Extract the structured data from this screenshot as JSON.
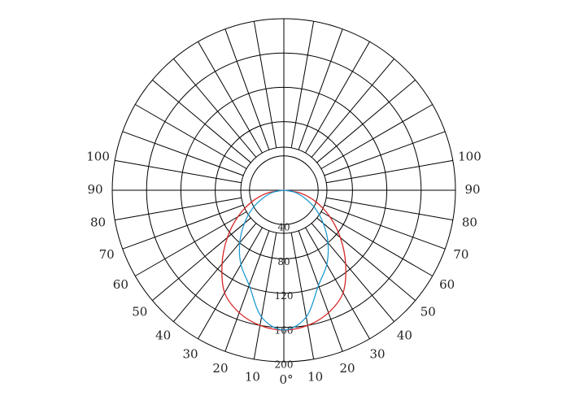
{
  "chart_data": {
    "type": "polar",
    "x": [
      -90,
      -80,
      -70,
      -60,
      -50,
      -40,
      -30,
      -20,
      -10,
      0,
      10,
      20,
      30,
      40,
      50,
      60,
      70,
      80,
      90
    ],
    "series": [
      {
        "color": "#d62728",
        "values": [
          0,
          20,
          40,
          62,
          86,
          112,
          138,
          152,
          160,
          163,
          160,
          152,
          138,
          112,
          86,
          62,
          40,
          20,
          0
        ]
      },
      {
        "color": "#1f9bd1",
        "values": [
          0,
          12,
          25,
          42,
          60,
          80,
          100,
          118,
          150,
          163,
          150,
          118,
          100,
          80,
          60,
          42,
          25,
          12,
          0
        ]
      }
    ],
    "rlim": [
      0,
      200
    ],
    "rticks": [
      40,
      80,
      120,
      160,
      200
    ],
    "thetaticks": [
      {
        "value": 0,
        "label": "0°"
      },
      10,
      20,
      30,
      40,
      50,
      60,
      70,
      80,
      90,
      100
    ]
  }
}
